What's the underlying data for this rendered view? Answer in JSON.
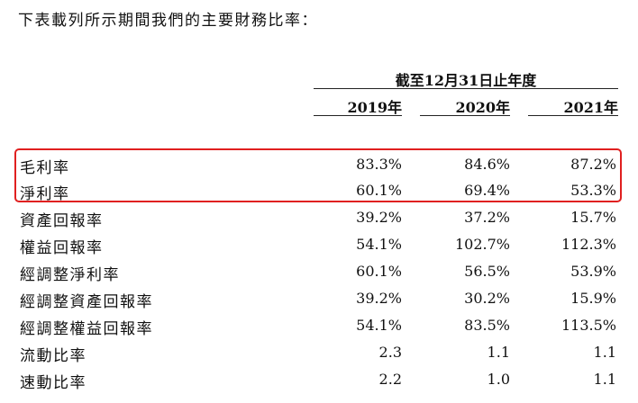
{
  "intro": "下表載列所示期間我們的主要財務比率：",
  "table": {
    "period_header": "截至12月31日止年度",
    "years": [
      "2019年",
      "2020年",
      "2021年"
    ],
    "rows": [
      {
        "label": "毛利率",
        "values": [
          "83.3%",
          "84.6%",
          "87.2%"
        ]
      },
      {
        "label": "淨利率",
        "values": [
          "60.1%",
          "69.4%",
          "53.3%"
        ]
      },
      {
        "label": "資產回報率",
        "values": [
          "39.2%",
          "37.2%",
          "15.7%"
        ]
      },
      {
        "label": "權益回報率",
        "values": [
          "54.1%",
          "102.7%",
          "112.3%"
        ]
      },
      {
        "label": "經調整淨利率",
        "values": [
          "60.1%",
          "56.5%",
          "53.9%"
        ]
      },
      {
        "label": "經調整資產回報率",
        "values": [
          "39.2%",
          "30.2%",
          "15.9%"
        ]
      },
      {
        "label": "經調整權益回報率",
        "values": [
          "54.1%",
          "83.5%",
          "113.5%"
        ]
      },
      {
        "label": "流動比率",
        "values": [
          "2.3",
          "1.1",
          "1.1"
        ]
      },
      {
        "label": "速動比率",
        "values": [
          "2.2",
          "1.0",
          "1.1"
        ]
      }
    ]
  },
  "highlight": {
    "color": "#e02020",
    "rows": [
      "毛利率",
      "淨利率"
    ]
  }
}
